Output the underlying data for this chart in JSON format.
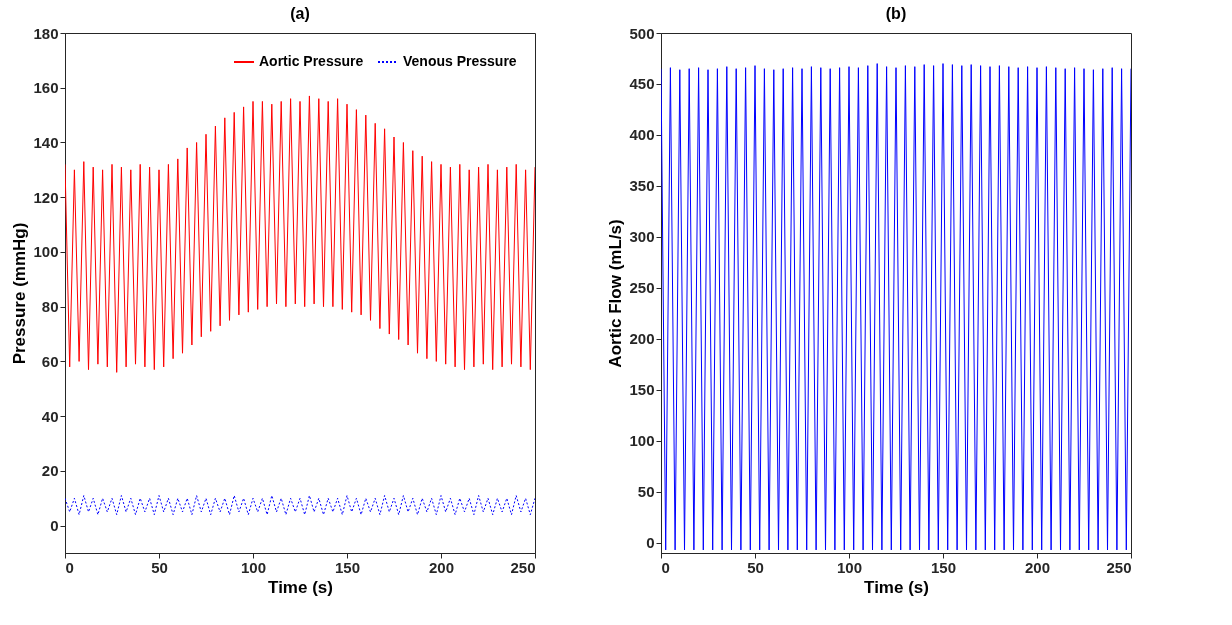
{
  "chart_data": [
    {
      "type": "line",
      "title": "(a)",
      "xlabel": "Time (s)",
      "ylabel": "Pressure (mmHg)",
      "xlim": [
        0,
        250
      ],
      "xticks": [
        0,
        50,
        100,
        150,
        200,
        250
      ],
      "ylim": [
        -10,
        180
      ],
      "yticks": [
        0,
        20,
        40,
        60,
        80,
        100,
        120,
        140,
        160,
        180
      ],
      "legend": "top right",
      "x": [
        0,
        2.5,
        5,
        7.5,
        10,
        12.5,
        15,
        17.5,
        20,
        22.5,
        25,
        27.5,
        30,
        32.5,
        35,
        37.5,
        40,
        42.5,
        45,
        47.5,
        50,
        52.5,
        55,
        57.5,
        60,
        62.5,
        65,
        67.5,
        70,
        72.5,
        75,
        77.5,
        80,
        82.5,
        85,
        87.5,
        90,
        92.5,
        95,
        97.5,
        100,
        102.5,
        105,
        107.5,
        110,
        112.5,
        115,
        117.5,
        120,
        122.5,
        125,
        127.5,
        130,
        132.5,
        135,
        137.5,
        140,
        142.5,
        145,
        147.5,
        150,
        152.5,
        155,
        157.5,
        160,
        162.5,
        165,
        167.5,
        170,
        172.5,
        175,
        177.5,
        180,
        182.5,
        185,
        187.5,
        190,
        192.5,
        195,
        197.5,
        200,
        202.5,
        205,
        207.5,
        210,
        212.5,
        215,
        217.5,
        220,
        222.5,
        225,
        227.5,
        230,
        232.5,
        235,
        237.5,
        240,
        242.5,
        245,
        247.5,
        250
      ],
      "series": [
        {
          "name": "Aortic Pressure",
          "color": "#ff0000",
          "line_style": "solid",
          "values": [
            132,
            58,
            130,
            60,
            133,
            57,
            131,
            59,
            130,
            58,
            132,
            56,
            131,
            58,
            130,
            59,
            132,
            58,
            131,
            57,
            130,
            58,
            132,
            61,
            134,
            63,
            138,
            66,
            140,
            69,
            143,
            71,
            146,
            73,
            149,
            75,
            151,
            77,
            153,
            78,
            155,
            79,
            155,
            80,
            154,
            81,
            155,
            80,
            156,
            81,
            155,
            80,
            157,
            81,
            156,
            80,
            155,
            80,
            156,
            79,
            154,
            78,
            152,
            77,
            150,
            75,
            147,
            72,
            145,
            70,
            142,
            68,
            140,
            66,
            137,
            63,
            135,
            61,
            133,
            60,
            132,
            59,
            131,
            58,
            132,
            57,
            130,
            58,
            131,
            59,
            132,
            57,
            130,
            58,
            131,
            59,
            132,
            58,
            130,
            57,
            131
          ]
        },
        {
          "name": "Venous Pressure",
          "color": "#0000ff",
          "line_style": "dotted",
          "values": [
            10,
            5,
            10,
            4,
            11,
            5,
            10,
            4,
            10,
            5,
            10,
            4,
            11,
            5,
            10,
            4,
            10,
            5,
            10,
            4,
            11,
            5,
            10,
            4,
            10,
            5,
            10,
            4,
            11,
            5,
            10,
            4,
            10,
            5,
            10,
            4,
            11,
            5,
            10,
            4,
            10,
            5,
            10,
            4,
            11,
            5,
            10,
            4,
            10,
            5,
            10,
            4,
            11,
            5,
            10,
            4,
            10,
            5,
            10,
            4,
            11,
            5,
            10,
            4,
            10,
            5,
            10,
            4,
            11,
            5,
            10,
            4,
            11,
            5,
            10,
            4,
            10,
            5,
            10,
            4,
            11,
            5,
            10,
            4,
            10,
            5,
            10,
            4,
            11,
            5,
            10,
            4,
            10,
            5,
            10,
            4,
            11,
            5,
            10,
            4,
            10
          ]
        }
      ]
    },
    {
      "type": "line",
      "title": "(b)",
      "xlabel": "Time (s)",
      "ylabel": "Aortic Flow (mL/s)",
      "xlim": [
        0,
        250
      ],
      "xticks": [
        0,
        50,
        100,
        150,
        200,
        250
      ],
      "ylim": [
        -10,
        500
      ],
      "yticks": [
        0,
        50,
        100,
        150,
        200,
        250,
        300,
        350,
        400,
        450,
        500
      ],
      "x": [
        0,
        2.5,
        5,
        7.5,
        10,
        12.5,
        15,
        17.5,
        20,
        22.5,
        25,
        27.5,
        30,
        32.5,
        35,
        37.5,
        40,
        42.5,
        45,
        47.5,
        50,
        52.5,
        55,
        57.5,
        60,
        62.5,
        65,
        67.5,
        70,
        72.5,
        75,
        77.5,
        80,
        82.5,
        85,
        87.5,
        90,
        92.5,
        95,
        97.5,
        100,
        102.5,
        105,
        107.5,
        110,
        112.5,
        115,
        117.5,
        120,
        122.5,
        125,
        127.5,
        130,
        132.5,
        135,
        137.5,
        140,
        142.5,
        145,
        147.5,
        150,
        152.5,
        155,
        157.5,
        160,
        162.5,
        165,
        167.5,
        170,
        172.5,
        175,
        177.5,
        180,
        182.5,
        185,
        187.5,
        190,
        192.5,
        195,
        197.5,
        200,
        202.5,
        205,
        207.5,
        210,
        212.5,
        215,
        217.5,
        220,
        222.5,
        225,
        227.5,
        230,
        232.5,
        235,
        237.5,
        240,
        242.5,
        245,
        247.5,
        250
      ],
      "series": [
        {
          "color": "#0000ff",
          "line_style": "solid",
          "values": [
            465,
            -7,
            466,
            -7,
            464,
            -7,
            465,
            -7,
            466,
            -7,
            464,
            -7,
            465,
            -7,
            467,
            -7,
            465,
            -7,
            466,
            -7,
            468,
            -7,
            465,
            -7,
            464,
            -7,
            465,
            -7,
            466,
            -7,
            465,
            -7,
            467,
            -7,
            466,
            -7,
            465,
            -7,
            466,
            -7,
            467,
            -7,
            466,
            -7,
            468,
            -7,
            470,
            -7,
            467,
            -7,
            466,
            -7,
            468,
            -7,
            467,
            -7,
            469,
            -7,
            468,
            -7,
            470,
            -7,
            469,
            -7,
            468,
            -7,
            469,
            -7,
            468,
            -7,
            467,
            -7,
            468,
            -7,
            467,
            -7,
            466,
            -7,
            467,
            -7,
            466,
            -7,
            467,
            -7,
            466,
            -7,
            465,
            -7,
            466,
            -7,
            465,
            -7,
            464,
            -7,
            465,
            -7,
            466,
            -7,
            465,
            -7,
            465
          ]
        }
      ]
    }
  ]
}
